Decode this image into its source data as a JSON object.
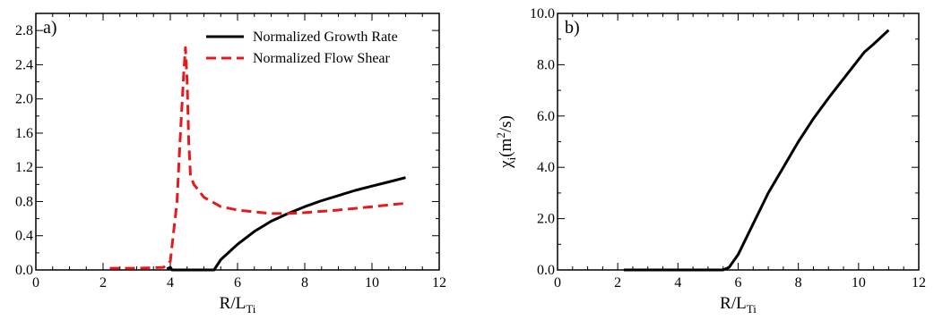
{
  "chart_data": [
    {
      "type": "line",
      "panel_label": "a)",
      "xlabel": "R/L",
      "xlabel_sub": "Ti",
      "ylabel": "",
      "xlim": [
        0,
        12
      ],
      "ylim": [
        0,
        3.0
      ],
      "x_ticks": [
        "0",
        "2",
        "4",
        "6",
        "8",
        "10",
        "12"
      ],
      "y_ticks": [
        "0.0",
        "0.4",
        "0.8",
        "1.2",
        "1.6",
        "2.0",
        "2.4",
        "2.8"
      ],
      "grid": false,
      "legend_position": "top-right",
      "series": [
        {
          "name": "Normalized  Growth Rate",
          "color": "#000000",
          "style": "solid",
          "points": [
            [
              3.9,
              0.01
            ],
            [
              4.0,
              0.03
            ],
            [
              4.05,
              0.0
            ],
            [
              5.3,
              0.0
            ],
            [
              5.5,
              0.12
            ],
            [
              6.0,
              0.3
            ],
            [
              6.5,
              0.45
            ],
            [
              7.0,
              0.57
            ],
            [
              7.5,
              0.66
            ],
            [
              8.0,
              0.74
            ],
            [
              8.5,
              0.81
            ],
            [
              9.0,
              0.87
            ],
            [
              9.5,
              0.93
            ],
            [
              10.0,
              0.98
            ],
            [
              10.5,
              1.03
            ],
            [
              11.0,
              1.08
            ]
          ]
        },
        {
          "name": "Normalized Flow Shear",
          "color": "#e41a1c",
          "style": "dashed",
          "points": [
            [
              2.2,
              0.02
            ],
            [
              3.0,
              0.02
            ],
            [
              3.8,
              0.03
            ],
            [
              4.0,
              0.1
            ],
            [
              4.2,
              0.8
            ],
            [
              4.3,
              1.6
            ],
            [
              4.4,
              2.3
            ],
            [
              4.45,
              2.6
            ],
            [
              4.5,
              2.2
            ],
            [
              4.55,
              1.5
            ],
            [
              4.6,
              1.1
            ],
            [
              4.7,
              1.0
            ],
            [
              5.0,
              0.85
            ],
            [
              5.5,
              0.74
            ],
            [
              6.0,
              0.7
            ],
            [
              7.0,
              0.66
            ],
            [
              7.5,
              0.66
            ],
            [
              8.0,
              0.67
            ],
            [
              9.0,
              0.7
            ],
            [
              10.0,
              0.74
            ],
            [
              11.0,
              0.78
            ]
          ]
        }
      ]
    },
    {
      "type": "line",
      "panel_label": "b)",
      "xlabel": "R/L",
      "xlabel_sub": "Ti",
      "ylabel": "χ",
      "ylabel_sub": "i",
      "ylabel_rest": "(m",
      "ylabel_sup": "2",
      "ylabel_end": "/s)",
      "xlim": [
        0,
        12
      ],
      "ylim": [
        0,
        10.0
      ],
      "x_ticks": [
        "0",
        "2",
        "4",
        "6",
        "8",
        "10",
        "12"
      ],
      "y_ticks": [
        "0.0",
        "2.0",
        "4.0",
        "6.0",
        "8.0",
        "10.0"
      ],
      "grid": false,
      "series": [
        {
          "name": "",
          "color": "#000000",
          "style": "solid",
          "points": [
            [
              2.2,
              0.0
            ],
            [
              5.5,
              0.0
            ],
            [
              5.7,
              0.1
            ],
            [
              6.0,
              0.6
            ],
            [
              6.5,
              1.8
            ],
            [
              7.0,
              3.0
            ],
            [
              7.5,
              4.0
            ],
            [
              8.0,
              5.0
            ],
            [
              8.5,
              5.9
            ],
            [
              9.0,
              6.7
            ],
            [
              9.5,
              7.45
            ],
            [
              10.0,
              8.2
            ],
            [
              10.2,
              8.5
            ],
            [
              10.5,
              8.8
            ],
            [
              11.0,
              9.35
            ]
          ]
        }
      ]
    }
  ]
}
